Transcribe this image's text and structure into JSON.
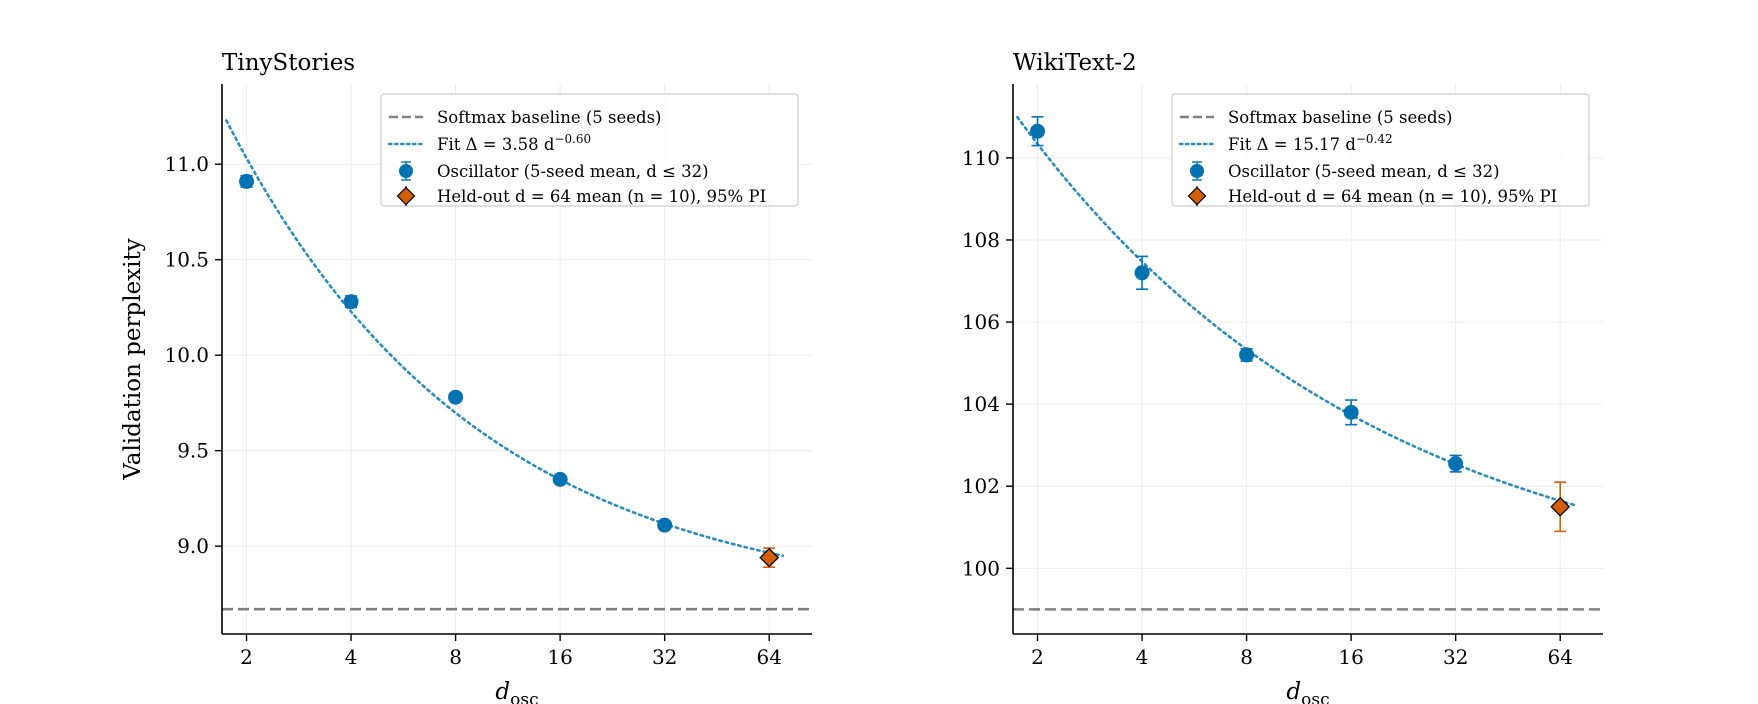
{
  "chart_data": [
    {
      "type": "scatter",
      "title": "TinyStories",
      "xlabel_main": "d",
      "xlabel_sub": "osc",
      "ylabel": "Validation perplexity",
      "x_scale": "log2",
      "xlim": [
        1.7,
        85
      ],
      "ylim": [
        8.54,
        11.42
      ],
      "x_ticks": [
        2,
        4,
        8,
        16,
        32,
        64
      ],
      "x_tick_labels": [
        "2",
        "4",
        "8",
        "16",
        "32",
        "64"
      ],
      "y_ticks": [
        9.0,
        9.5,
        10.0,
        10.5,
        11.0
      ],
      "y_tick_labels": [
        "9.0",
        "9.5",
        "10.0",
        "10.5",
        "11.0"
      ],
      "grid": true,
      "legend_position": "top-right",
      "baseline": {
        "label": "Softmax baseline (5 seeds)",
        "y": 8.67,
        "color": "#808080",
        "style": "dashed"
      },
      "fit": {
        "label_prefix": "Fit Δ = 3.58 d",
        "label_exp": "−0.60",
        "a": 3.58,
        "b": -0.6,
        "offset": 8.67,
        "x_range": [
          1.75,
          70
        ],
        "color": "#2b8cbe",
        "style": "dotted"
      },
      "series": [
        {
          "label_prefix": "Oscillator (5-seed mean, d ≤ 32)",
          "marker": "circle",
          "color": "#0072b2",
          "x": [
            2,
            4,
            8,
            16,
            32
          ],
          "y": [
            10.91,
            10.28,
            9.78,
            9.35,
            9.11
          ],
          "err": [
            0.03,
            0.03,
            0.02,
            0.015,
            0.015
          ]
        },
        {
          "label_prefix": "Held-out d = 64 mean (n = 10), 95% PI",
          "marker": "diamond",
          "color": "#d55e00",
          "x": [
            64
          ],
          "y": [
            8.94
          ],
          "err": [
            0.05
          ]
        }
      ]
    },
    {
      "type": "scatter",
      "title": "WikiText-2",
      "xlabel_main": "d",
      "xlabel_sub": "osc",
      "ylabel": "",
      "x_scale": "log2",
      "xlim": [
        1.7,
        85
      ],
      "ylim": [
        98.4,
        111.8
      ],
      "x_ticks": [
        2,
        4,
        8,
        16,
        32,
        64
      ],
      "x_tick_labels": [
        "2",
        "4",
        "8",
        "16",
        "32",
        "64"
      ],
      "y_ticks": [
        100,
        102,
        104,
        106,
        108,
        110
      ],
      "y_tick_labels": [
        "100",
        "102",
        "104",
        "106",
        "108",
        "110"
      ],
      "grid": true,
      "legend_position": "top-right",
      "baseline": {
        "label": "Softmax baseline (5 seeds)",
        "y": 99.0,
        "color": "#808080",
        "style": "dashed"
      },
      "fit": {
        "label_prefix": "Fit Δ = 15.17 d",
        "label_exp": "−0.42",
        "a": 15.17,
        "b": -0.42,
        "offset": 99.0,
        "x_range": [
          1.75,
          70
        ],
        "color": "#2b8cbe",
        "style": "dotted"
      },
      "series": [
        {
          "label_prefix": "Oscillator (5-seed mean, d ≤ 32)",
          "marker": "circle",
          "color": "#0072b2",
          "x": [
            2,
            4,
            8,
            16,
            32
          ],
          "y": [
            110.65,
            107.2,
            105.2,
            103.8,
            102.55
          ],
          "err": [
            0.35,
            0.4,
            0.15,
            0.3,
            0.2
          ]
        },
        {
          "label_prefix": "Held-out d = 64 mean (n = 10), 95% PI",
          "marker": "diamond",
          "color": "#d55e00",
          "x": [
            64
          ],
          "y": [
            101.5
          ],
          "err": [
            0.6
          ]
        }
      ]
    }
  ]
}
